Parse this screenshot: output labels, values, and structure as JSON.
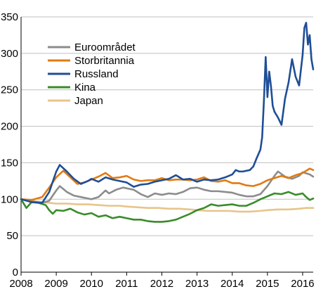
{
  "chart_data": {
    "type": "line",
    "title": "",
    "xlabel": "",
    "ylabel": "",
    "xlim": [
      2008,
      2016.3
    ],
    "ylim": [
      0,
      350
    ],
    "x_ticks": [
      2008,
      2009,
      2010,
      2011,
      2012,
      2013,
      2014,
      2015,
      2016
    ],
    "x_tick_labels": [
      "2008",
      "2009",
      "2010",
      "2011",
      "2012",
      "2013",
      "2014",
      "2015",
      "2016"
    ],
    "y_ticks": [
      0,
      50,
      100,
      150,
      200,
      250,
      300,
      350
    ],
    "y_tick_labels": [
      "0",
      "50",
      "100",
      "150",
      "200",
      "250",
      "300",
      "350"
    ],
    "grid": "horizontal",
    "legend_position": "top-left",
    "series": [
      {
        "name": "Euroområdet",
        "color": "#8c8c8c",
        "points": [
          [
            2008.0,
            100
          ],
          [
            2008.3,
            97
          ],
          [
            2008.6,
            95
          ],
          [
            2008.8,
            98
          ],
          [
            2009.0,
            112
          ],
          [
            2009.1,
            118
          ],
          [
            2009.3,
            110
          ],
          [
            2009.5,
            105
          ],
          [
            2009.7,
            103
          ],
          [
            2009.9,
            101
          ],
          [
            2010.0,
            100
          ],
          [
            2010.2,
            103
          ],
          [
            2010.4,
            112
          ],
          [
            2010.5,
            108
          ],
          [
            2010.7,
            113
          ],
          [
            2010.9,
            116
          ],
          [
            2011.0,
            115
          ],
          [
            2011.2,
            113
          ],
          [
            2011.4,
            107
          ],
          [
            2011.6,
            103
          ],
          [
            2011.8,
            108
          ],
          [
            2012.0,
            106
          ],
          [
            2012.2,
            108
          ],
          [
            2012.4,
            107
          ],
          [
            2012.6,
            110
          ],
          [
            2012.8,
            115
          ],
          [
            2013.0,
            116
          ],
          [
            2013.2,
            113
          ],
          [
            2013.4,
            111
          ],
          [
            2013.6,
            111
          ],
          [
            2013.8,
            110
          ],
          [
            2014.0,
            109
          ],
          [
            2014.2,
            106
          ],
          [
            2014.4,
            104
          ],
          [
            2014.6,
            104
          ],
          [
            2014.8,
            107
          ],
          [
            2015.0,
            118
          ],
          [
            2015.2,
            132
          ],
          [
            2015.3,
            138
          ],
          [
            2015.5,
            131
          ],
          [
            2015.7,
            128
          ],
          [
            2015.9,
            132
          ],
          [
            2016.0,
            137
          ],
          [
            2016.2,
            134
          ],
          [
            2016.3,
            131
          ]
        ]
      },
      {
        "name": "Storbritannia",
        "color": "#e07b12",
        "points": [
          [
            2008.0,
            100
          ],
          [
            2008.3,
            99
          ],
          [
            2008.6,
            103
          ],
          [
            2008.8,
            116
          ],
          [
            2009.0,
            130
          ],
          [
            2009.2,
            139
          ],
          [
            2009.4,
            130
          ],
          [
            2009.6,
            121
          ],
          [
            2009.8,
            123
          ],
          [
            2010.0,
            127
          ],
          [
            2010.2,
            131
          ],
          [
            2010.4,
            136
          ],
          [
            2010.6,
            129
          ],
          [
            2010.8,
            130
          ],
          [
            2011.0,
            132
          ],
          [
            2011.2,
            127
          ],
          [
            2011.4,
            125
          ],
          [
            2011.6,
            126
          ],
          [
            2011.8,
            126
          ],
          [
            2012.0,
            129
          ],
          [
            2012.2,
            126
          ],
          [
            2012.4,
            127
          ],
          [
            2012.6,
            127
          ],
          [
            2012.8,
            126
          ],
          [
            2013.0,
            127
          ],
          [
            2013.2,
            130
          ],
          [
            2013.4,
            125
          ],
          [
            2013.6,
            124
          ],
          [
            2013.8,
            126
          ],
          [
            2014.0,
            122
          ],
          [
            2014.2,
            122
          ],
          [
            2014.4,
            119
          ],
          [
            2014.6,
            118
          ],
          [
            2014.8,
            121
          ],
          [
            2015.0,
            126
          ],
          [
            2015.2,
            129
          ],
          [
            2015.4,
            132
          ],
          [
            2015.6,
            129
          ],
          [
            2015.8,
            133
          ],
          [
            2016.0,
            136
          ],
          [
            2016.2,
            142
          ],
          [
            2016.3,
            140
          ]
        ]
      },
      {
        "name": "Russland",
        "color": "#1f4e96",
        "points": [
          [
            2008.0,
            100
          ],
          [
            2008.3,
            96
          ],
          [
            2008.6,
            95
          ],
          [
            2008.8,
            110
          ],
          [
            2009.0,
            138
          ],
          [
            2009.1,
            147
          ],
          [
            2009.3,
            138
          ],
          [
            2009.5,
            128
          ],
          [
            2009.7,
            121
          ],
          [
            2009.9,
            125
          ],
          [
            2010.0,
            128
          ],
          [
            2010.2,
            124
          ],
          [
            2010.4,
            130
          ],
          [
            2010.6,
            127
          ],
          [
            2010.8,
            125
          ],
          [
            2011.0,
            123
          ],
          [
            2011.2,
            117
          ],
          [
            2011.4,
            120
          ],
          [
            2011.6,
            121
          ],
          [
            2011.8,
            124
          ],
          [
            2012.0,
            126
          ],
          [
            2012.2,
            128
          ],
          [
            2012.4,
            133
          ],
          [
            2012.6,
            127
          ],
          [
            2012.8,
            128
          ],
          [
            2013.0,
            124
          ],
          [
            2013.2,
            127
          ],
          [
            2013.4,
            126
          ],
          [
            2013.6,
            127
          ],
          [
            2013.8,
            130
          ],
          [
            2014.0,
            134
          ],
          [
            2014.1,
            140
          ],
          [
            2014.2,
            138
          ],
          [
            2014.3,
            138
          ],
          [
            2014.5,
            140
          ],
          [
            2014.6,
            145
          ],
          [
            2014.7,
            157
          ],
          [
            2014.8,
            168
          ],
          [
            2014.85,
            185
          ],
          [
            2014.9,
            235
          ],
          [
            2014.95,
            295
          ],
          [
            2015.0,
            240
          ],
          [
            2015.05,
            275
          ],
          [
            2015.1,
            255
          ],
          [
            2015.15,
            228
          ],
          [
            2015.2,
            220
          ],
          [
            2015.3,
            212
          ],
          [
            2015.4,
            202
          ],
          [
            2015.5,
            238
          ],
          [
            2015.6,
            260
          ],
          [
            2015.7,
            292
          ],
          [
            2015.8,
            268
          ],
          [
            2015.9,
            256
          ],
          [
            2016.0,
            298
          ],
          [
            2016.05,
            335
          ],
          [
            2016.1,
            342
          ],
          [
            2016.15,
            312
          ],
          [
            2016.2,
            325
          ],
          [
            2016.25,
            292
          ],
          [
            2016.3,
            278
          ]
        ]
      },
      {
        "name": "Kina",
        "color": "#3a8c2a",
        "points": [
          [
            2008.0,
            100
          ],
          [
            2008.15,
            88
          ],
          [
            2008.3,
            96
          ],
          [
            2008.5,
            95
          ],
          [
            2008.7,
            92
          ],
          [
            2008.8,
            85
          ],
          [
            2008.9,
            80
          ],
          [
            2009.0,
            85
          ],
          [
            2009.2,
            84
          ],
          [
            2009.4,
            87
          ],
          [
            2009.6,
            82
          ],
          [
            2009.8,
            79
          ],
          [
            2010.0,
            81
          ],
          [
            2010.2,
            76
          ],
          [
            2010.4,
            78
          ],
          [
            2010.6,
            74
          ],
          [
            2010.8,
            76
          ],
          [
            2011.0,
            74
          ],
          [
            2011.2,
            72
          ],
          [
            2011.4,
            72
          ],
          [
            2011.6,
            70
          ],
          [
            2011.8,
            69
          ],
          [
            2012.0,
            69
          ],
          [
            2012.2,
            70
          ],
          [
            2012.4,
            72
          ],
          [
            2012.6,
            76
          ],
          [
            2012.8,
            80
          ],
          [
            2013.0,
            85
          ],
          [
            2013.2,
            88
          ],
          [
            2013.4,
            93
          ],
          [
            2013.6,
            91
          ],
          [
            2013.8,
            92
          ],
          [
            2014.0,
            93
          ],
          [
            2014.2,
            91
          ],
          [
            2014.4,
            91
          ],
          [
            2014.6,
            95
          ],
          [
            2014.8,
            100
          ],
          [
            2015.0,
            104
          ],
          [
            2015.2,
            108
          ],
          [
            2015.4,
            107
          ],
          [
            2015.6,
            110
          ],
          [
            2015.8,
            106
          ],
          [
            2016.0,
            108
          ],
          [
            2016.1,
            103
          ],
          [
            2016.2,
            99
          ],
          [
            2016.3,
            101
          ]
        ]
      },
      {
        "name": "Japan",
        "color": "#e8c48a",
        "points": [
          [
            2008.0,
            100
          ],
          [
            2008.3,
            98
          ],
          [
            2008.6,
            96
          ],
          [
            2008.8,
            95
          ],
          [
            2009.0,
            94
          ],
          [
            2009.3,
            94
          ],
          [
            2009.6,
            93
          ],
          [
            2009.9,
            93
          ],
          [
            2010.2,
            92
          ],
          [
            2010.5,
            91
          ],
          [
            2010.8,
            91
          ],
          [
            2011.0,
            90
          ],
          [
            2011.3,
            89
          ],
          [
            2011.6,
            88
          ],
          [
            2011.9,
            88
          ],
          [
            2012.2,
            87
          ],
          [
            2012.5,
            87
          ],
          [
            2012.8,
            86
          ],
          [
            2013.0,
            85
          ],
          [
            2013.3,
            84
          ],
          [
            2013.6,
            84
          ],
          [
            2013.9,
            84
          ],
          [
            2014.2,
            83
          ],
          [
            2014.5,
            83
          ],
          [
            2014.8,
            84
          ],
          [
            2015.0,
            85
          ],
          [
            2015.3,
            86
          ],
          [
            2015.6,
            86
          ],
          [
            2015.9,
            87
          ],
          [
            2016.1,
            88
          ],
          [
            2016.3,
            88
          ]
        ]
      }
    ]
  }
}
